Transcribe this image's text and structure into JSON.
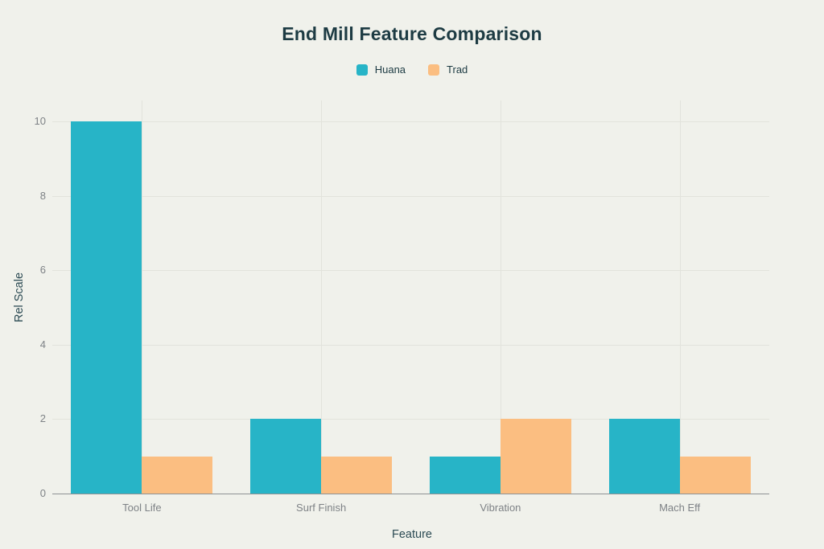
{
  "chart_data": {
    "type": "bar",
    "title": "End Mill Feature Comparison",
    "xlabel": "Feature",
    "ylabel": "Rel Scale",
    "categories": [
      "Tool Life",
      "Surf Finish",
      "Vibration",
      "Mach Eff"
    ],
    "series": [
      {
        "name": "Huana",
        "color": "#27B4C7",
        "values": [
          10,
          2,
          1,
          2
        ]
      },
      {
        "name": "Trad",
        "color": "#FBBE81",
        "values": [
          1,
          1,
          2,
          1
        ]
      }
    ],
    "y_ticks": [
      0,
      2,
      4,
      6,
      8,
      10
    ],
    "ylim": [
      0,
      10.55
    ],
    "grid": true,
    "legend_position": "top"
  },
  "colors": {
    "background": "#F0F1EB",
    "title_text": "#1D3B43",
    "axis_title_text": "#2B4A53",
    "tick_text": "#7E8286",
    "gridline": "#E2E3DC",
    "axis_line": "#8E9294"
  }
}
